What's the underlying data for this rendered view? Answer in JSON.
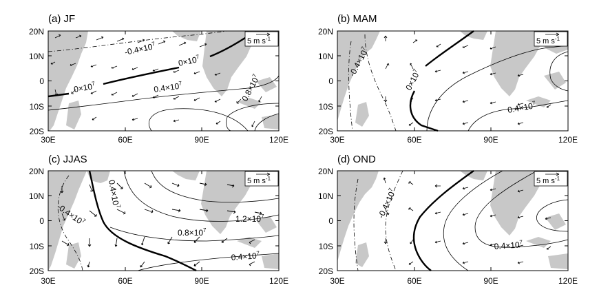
{
  "panels": [
    {
      "id": "a",
      "title": "(a) JF",
      "scale_label": "5 m s",
      "scale_exp": "-1",
      "y_ticks": [
        "20N",
        "10N",
        "0",
        "10S",
        "20S"
      ],
      "x_ticks": [
        "30E",
        "60E",
        "90E",
        "120E"
      ],
      "contour_labels": [
        {
          "mant": "-0.4×10",
          "exp": "7"
        },
        {
          "mant": "0×10",
          "exp": "7"
        },
        {
          "mant": "0×10",
          "exp": "7"
        },
        {
          "mant": "0.4×10",
          "exp": "7"
        },
        {
          "mant": "0.8×10",
          "exp": "7"
        }
      ]
    },
    {
      "id": "b",
      "title": "(b) MAM",
      "scale_label": "5 m s",
      "scale_exp": "-1",
      "y_ticks": [
        "20N",
        "10N",
        "0",
        "10S",
        "20S"
      ],
      "x_ticks": [
        "30E",
        "60E",
        "90E",
        "120E"
      ],
      "contour_labels": [
        {
          "mant": "-0.4×10",
          "exp": "7"
        },
        {
          "mant": "0×10",
          "exp": "7"
        },
        {
          "mant": "0.4×10",
          "exp": "7"
        }
      ]
    },
    {
      "id": "c",
      "title": "(c) JJAS",
      "scale_label": "5 m s",
      "scale_exp": "-1",
      "y_ticks": [
        "20N",
        "10N",
        "0",
        "10S",
        "20S"
      ],
      "x_ticks": [
        "30E",
        "60E",
        "90E",
        "120E"
      ],
      "contour_labels": [
        {
          "mant": "-0.4×10",
          "exp": "7"
        },
        {
          "mant": "0.4×10",
          "exp": "7"
        },
        {
          "mant": "1.2×10",
          "exp": "7"
        },
        {
          "mant": "0.8×10",
          "exp": "7"
        },
        {
          "mant": "0.4×10",
          "exp": "7"
        }
      ]
    },
    {
      "id": "d",
      "title": "(d) OND",
      "scale_label": "5 m s",
      "scale_exp": "-1",
      "y_ticks": [
        "20N",
        "10N",
        "0",
        "10S",
        "20S"
      ],
      "x_ticks": [
        "30E",
        "60E",
        "90E",
        "120E"
      ],
      "contour_labels": [
        {
          "mant": "-0.4×10",
          "exp": "7"
        },
        {
          "mant": "0.4×10",
          "exp": "7"
        }
      ]
    }
  ],
  "colors": {
    "land": "#c8c8c8",
    "ocean": "#ffffff",
    "contour": "#000000",
    "vector": "#000000"
  }
}
